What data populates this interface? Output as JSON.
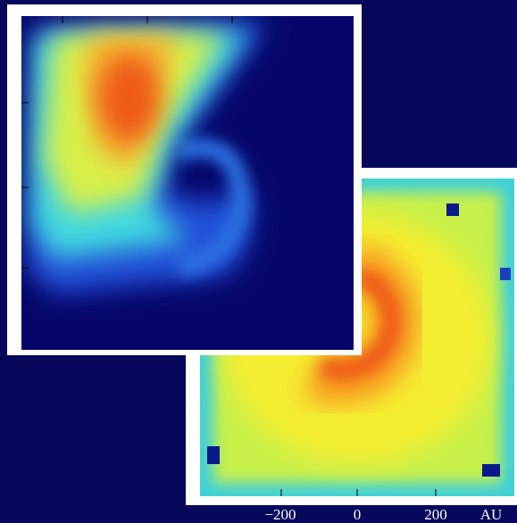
{
  "axis": {
    "ticks": [
      "−200",
      "0",
      "200"
    ],
    "unit": "AU"
  }
}
